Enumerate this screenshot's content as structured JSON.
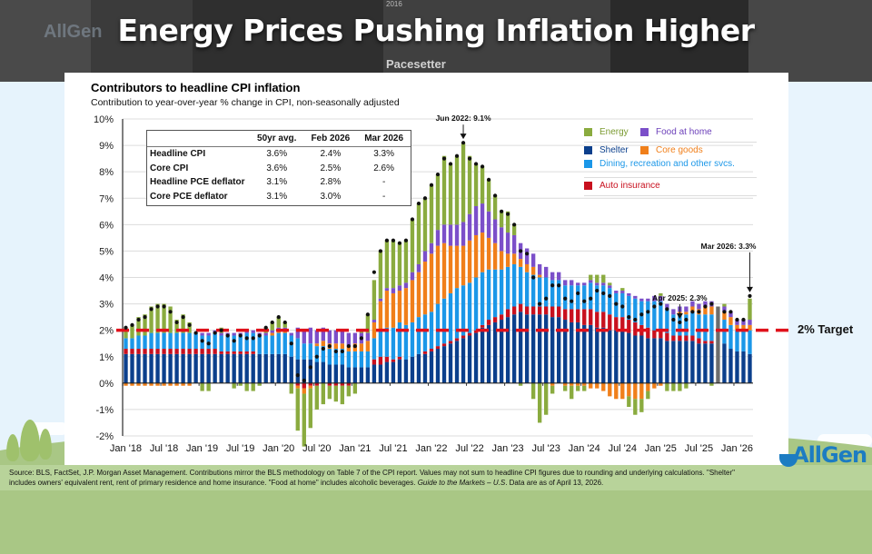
{
  "header": {
    "title": "Energy Prices Pushing Inflation Higher",
    "bg_logo_text": "AllGen",
    "bg_pacesetter_text": "Pacesetter",
    "bg_year_text": "2016"
  },
  "brand": {
    "name": "AllGen",
    "color": "#1c7cc2"
  },
  "source_note": {
    "line1": "Source: BLS, FactSet, J.P. Morgan Asset Management.  Contributions mirror the BLS methodology on Table 7 of the CPI report. Values may not sum to headline CPI figures due to rounding and underlying calculations. \"Shelter\"",
    "line2_a": "includes owners' equivalent rent, rent of primary residence and home insurance. \"Food at home\" includes alcoholic beverages. ",
    "line2_b": "Guide to the Markets – U.S",
    "line2_c": ". Data are as of April 13, 2026."
  },
  "summary_table": {
    "headers": [
      "",
      "50yr avg.",
      "Feb 2026",
      "Mar 2026"
    ],
    "rows": [
      {
        "label": "Headline CPI",
        "avg": "3.6%",
        "feb": "2.4%",
        "mar": "3.3%"
      },
      {
        "label": "Core CPI",
        "avg": "3.6%",
        "feb": "2.5%",
        "mar": "2.6%"
      },
      {
        "label": "Headline PCE deflator",
        "avg": "3.1%",
        "feb": "2.8%",
        "mar": "-"
      },
      {
        "label": "Core PCE deflator",
        "avg": "3.1%",
        "feb": "3.0%",
        "mar": "-"
      }
    ]
  },
  "target_label": "2% Target",
  "chart_data": {
    "type": "bar",
    "stacked": true,
    "title": "Contributors to headline CPI inflation",
    "subtitle": "Contribution to year-over-year % change in CPI, non-seasonally adjusted",
    "xlabel": "",
    "ylabel": "",
    "ylim": [
      -2,
      10
    ],
    "yticks": [
      "-2%",
      "-1%",
      "0%",
      "1%",
      "2%",
      "3%",
      "4%",
      "5%",
      "6%",
      "7%",
      "8%",
      "9%",
      "10%"
    ],
    "ytick_values": [
      -2,
      -1,
      0,
      1,
      2,
      3,
      4,
      5,
      6,
      7,
      8,
      9,
      10
    ],
    "xtick_labels": [
      "Jan '18",
      "Jul '18",
      "Jan '19",
      "Jul '19",
      "Jan '20",
      "Jul '20",
      "Jan '21",
      "Jul '21",
      "Jan '22",
      "Jul '22",
      "Jan '23",
      "Jul '23",
      "Jan '24",
      "Jul '24",
      "Jan '25",
      "Jul '25",
      "Jan '26"
    ],
    "xtick_index": [
      0,
      6,
      12,
      18,
      24,
      30,
      36,
      42,
      48,
      54,
      60,
      66,
      72,
      78,
      84,
      90,
      96
    ],
    "grid": true,
    "legend_position": "top-right",
    "legend": [
      {
        "name": "Energy",
        "color": "#8aab3f"
      },
      {
        "name": "Food at home",
        "color": "#7b4fc9"
      },
      {
        "name": "Shelter",
        "color": "#0b3f8c"
      },
      {
        "name": "Core goods",
        "color": "#f07f1a"
      },
      {
        "name": "Dining, recreation and other svcs.",
        "color": "#1b97e8"
      },
      {
        "name": "Auto insurance",
        "color": "#c8101e"
      }
    ],
    "target_line": {
      "value": 2,
      "label": "2% Target",
      "color": "#e0111b"
    },
    "annotations": [
      {
        "text": "Jun 2022: 9.1%",
        "index": 53,
        "value": 9.1
      },
      {
        "text": "Apr 2025: 2.3%",
        "index": 87,
        "value": 2.3
      },
      {
        "text": "Mar 2026: 3.3%",
        "index": 98,
        "value": 3.3
      }
    ],
    "missing_data_color": "#6d6d6d",
    "missing_data_index": [
      93
    ],
    "months": [
      "Jan 2018",
      "Feb 2018",
      "Mar 2018",
      "Apr 2018",
      "May 2018",
      "Jun 2018",
      "Jul 2018",
      "Aug 2018",
      "Sep 2018",
      "Oct 2018",
      "Nov 2018",
      "Dec 2018",
      "Jan 2019",
      "Feb 2019",
      "Mar 2019",
      "Apr 2019",
      "May 2019",
      "Jun 2019",
      "Jul 2019",
      "Aug 2019",
      "Sep 2019",
      "Oct 2019",
      "Nov 2019",
      "Dec 2019",
      "Jan 2020",
      "Feb 2020",
      "Mar 2020",
      "Apr 2020",
      "May 2020",
      "Jun 2020",
      "Jul 2020",
      "Aug 2020",
      "Sep 2020",
      "Oct 2020",
      "Nov 2020",
      "Dec 2020",
      "Jan 2021",
      "Feb 2021",
      "Mar 2021",
      "Apr 2021",
      "May 2021",
      "Jun 2021",
      "Jul 2021",
      "Aug 2021",
      "Sep 2021",
      "Oct 2021",
      "Nov 2021",
      "Dec 2021",
      "Jan 2022",
      "Feb 2022",
      "Mar 2022",
      "Apr 2022",
      "May 2022",
      "Jun 2022",
      "Jul 2022",
      "Aug 2022",
      "Sep 2022",
      "Oct 2022",
      "Nov 2022",
      "Dec 2022",
      "Jan 2023",
      "Feb 2023",
      "Mar 2023",
      "Apr 2023",
      "May 2023",
      "Jun 2023",
      "Jul 2023",
      "Aug 2023",
      "Sep 2023",
      "Oct 2023",
      "Nov 2023",
      "Dec 2023",
      "Jan 2024",
      "Feb 2024",
      "Mar 2024",
      "Apr 2024",
      "May 2024",
      "Jun 2024",
      "Jul 2024",
      "Aug 2024",
      "Sep 2024",
      "Oct 2024",
      "Nov 2024",
      "Dec 2024",
      "Jan 2025",
      "Feb 2025",
      "Mar 2025",
      "Apr 2025",
      "May 2025",
      "Jun 2025",
      "Jul 2025",
      "Aug 2025",
      "Sep 2025",
      "Oct 2025",
      "Nov 2025",
      "Dec 2025",
      "Jan 2026",
      "Feb 2026",
      "Mar 2026"
    ],
    "headline": [
      2.1,
      2.2,
      2.4,
      2.5,
      2.8,
      2.9,
      2.9,
      2.7,
      2.3,
      2.5,
      2.2,
      1.9,
      1.6,
      1.5,
      1.9,
      2.0,
      1.8,
      1.6,
      1.8,
      1.7,
      1.7,
      1.8,
      2.1,
      2.3,
      2.5,
      2.3,
      1.5,
      0.3,
      0.1,
      0.6,
      1.0,
      1.3,
      1.4,
      1.2,
      1.2,
      1.4,
      1.4,
      1.7,
      2.6,
      4.2,
      5.0,
      5.4,
      5.4,
      5.3,
      5.4,
      6.2,
      6.8,
      7.0,
      7.5,
      7.9,
      8.5,
      8.3,
      8.6,
      9.1,
      8.5,
      8.3,
      8.2,
      7.7,
      7.1,
      6.5,
      6.4,
      6.0,
      5.0,
      4.9,
      4.0,
      3.0,
      3.2,
      3.7,
      3.7,
      3.2,
      3.1,
      3.4,
      3.1,
      3.2,
      3.5,
      3.4,
      3.3,
      3.0,
      2.9,
      2.5,
      2.4,
      2.6,
      2.7,
      2.9,
      3.0,
      2.8,
      2.4,
      2.3,
      2.4,
      2.7,
      2.7,
      2.9,
      3.0,
      null,
      2.7,
      2.7,
      2.4,
      2.4,
      3.3
    ],
    "series": [
      {
        "name": "Shelter",
        "color": "#0b3f8c",
        "values": [
          1.1,
          1.1,
          1.1,
          1.1,
          1.1,
          1.1,
          1.1,
          1.1,
          1.1,
          1.1,
          1.1,
          1.1,
          1.1,
          1.1,
          1.1,
          1.1,
          1.1,
          1.1,
          1.1,
          1.1,
          1.1,
          1.1,
          1.1,
          1.1,
          1.1,
          1.1,
          1.0,
          0.9,
          0.9,
          0.9,
          0.8,
          0.8,
          0.7,
          0.7,
          0.7,
          0.6,
          0.6,
          0.6,
          0.6,
          0.7,
          0.7,
          0.8,
          0.8,
          0.9,
          0.9,
          1.0,
          1.1,
          1.1,
          1.2,
          1.3,
          1.4,
          1.5,
          1.6,
          1.7,
          1.8,
          1.9,
          2.1,
          2.2,
          2.3,
          2.4,
          2.5,
          2.6,
          2.7,
          2.6,
          2.6,
          2.6,
          2.6,
          2.5,
          2.5,
          2.4,
          2.3,
          2.3,
          2.2,
          2.2,
          2.1,
          2.1,
          2.0,
          2.0,
          2.0,
          1.9,
          1.8,
          1.8,
          1.7,
          1.7,
          1.7,
          1.6,
          1.6,
          1.6,
          1.6,
          1.6,
          1.5,
          1.5,
          1.5,
          1.5,
          1.5,
          1.3,
          1.2,
          1.2,
          1.1
        ]
      },
      {
        "name": "Auto insurance",
        "color": "#c8101e",
        "values": [
          0.2,
          0.2,
          0.2,
          0.2,
          0.2,
          0.2,
          0.2,
          0.2,
          0.2,
          0.2,
          0.2,
          0.2,
          0.2,
          0.2,
          0.2,
          0.1,
          0.1,
          0.1,
          0.1,
          0.1,
          0.1,
          0.0,
          0.0,
          0.0,
          0.0,
          0.0,
          0.0,
          -0.1,
          -0.2,
          -0.1,
          -0.1,
          0.0,
          -0.1,
          -0.1,
          -0.1,
          -0.1,
          0.0,
          0.0,
          0.0,
          0.2,
          0.3,
          0.2,
          0.1,
          0.1,
          0.0,
          0.0,
          0.0,
          0.1,
          0.1,
          0.1,
          0.1,
          0.1,
          0.1,
          0.1,
          0.1,
          0.1,
          0.1,
          0.2,
          0.2,
          0.2,
          0.3,
          0.3,
          0.3,
          0.3,
          0.3,
          0.3,
          0.3,
          0.4,
          0.4,
          0.4,
          0.5,
          0.5,
          0.6,
          0.6,
          0.6,
          0.6,
          0.6,
          0.5,
          0.5,
          0.5,
          0.5,
          0.4,
          0.4,
          0.3,
          0.3,
          0.3,
          0.2,
          0.2,
          0.2,
          0.2,
          0.2,
          0.1,
          0.1,
          0.0,
          0.0,
          0.0,
          0.0,
          0.0,
          0.0
        ]
      },
      {
        "name": "Dining, recreation and other svcs.",
        "color": "#1b97e8",
        "values": [
          0.4,
          0.4,
          0.5,
          0.5,
          0.6,
          0.6,
          0.6,
          0.6,
          0.6,
          0.6,
          0.6,
          0.6,
          0.5,
          0.5,
          0.6,
          0.6,
          0.6,
          0.6,
          0.6,
          0.7,
          0.7,
          0.7,
          0.7,
          0.7,
          0.8,
          0.8,
          0.8,
          0.8,
          0.6,
          0.6,
          0.6,
          0.6,
          0.6,
          0.6,
          0.6,
          0.6,
          0.6,
          0.6,
          0.6,
          0.8,
          1.0,
          1.1,
          1.2,
          1.3,
          1.3,
          1.3,
          1.4,
          1.4,
          1.4,
          1.6,
          1.7,
          1.8,
          1.9,
          1.9,
          1.9,
          2.0,
          2.0,
          1.9,
          1.8,
          1.7,
          1.6,
          1.6,
          1.4,
          1.3,
          1.2,
          1.1,
          1.1,
          1.0,
          1.0,
          0.9,
          0.9,
          0.9,
          0.9,
          1.0,
          1.0,
          1.0,
          1.0,
          0.9,
          0.9,
          0.9,
          0.9,
          0.9,
          1.0,
          1.1,
          1.1,
          0.9,
          0.8,
          0.8,
          0.8,
          0.9,
          0.9,
          1.0,
          1.0,
          0.0,
          0.9,
          0.9,
          0.8,
          0.8,
          0.9
        ]
      },
      {
        "name": "Core goods",
        "color": "#f07f1a",
        "values": [
          -0.1,
          -0.1,
          -0.1,
          -0.1,
          -0.1,
          -0.1,
          -0.1,
          -0.1,
          -0.1,
          -0.1,
          -0.1,
          0.0,
          0.0,
          0.0,
          0.0,
          0.0,
          0.0,
          0.0,
          0.0,
          0.0,
          0.0,
          0.0,
          0.0,
          0.1,
          0.1,
          0.1,
          0.0,
          -0.1,
          -0.2,
          -0.1,
          0.1,
          0.2,
          0.2,
          0.2,
          0.2,
          0.2,
          0.3,
          0.3,
          0.4,
          0.6,
          1.1,
          1.4,
          1.3,
          1.2,
          1.4,
          1.6,
          1.7,
          2.0,
          2.2,
          2.2,
          2.1,
          1.8,
          1.6,
          1.5,
          1.6,
          1.6,
          1.5,
          1.2,
          1.0,
          0.7,
          0.5,
          0.4,
          0.3,
          0.3,
          0.3,
          0.1,
          0.0,
          -0.1,
          0.0,
          -0.1,
          -0.1,
          -0.1,
          -0.1,
          -0.2,
          -0.2,
          -0.3,
          -0.5,
          -0.6,
          -0.6,
          -0.5,
          -0.6,
          -0.6,
          -0.3,
          -0.2,
          -0.1,
          0.0,
          0.0,
          0.1,
          0.1,
          0.2,
          0.2,
          0.3,
          0.3,
          0.0,
          0.3,
          0.3,
          0.2,
          0.2,
          0.2
        ]
      },
      {
        "name": "Food at home",
        "color": "#7b4fc9",
        "values": [
          0.0,
          0.0,
          0.0,
          0.0,
          0.0,
          0.0,
          0.0,
          0.0,
          0.0,
          0.0,
          0.0,
          0.0,
          0.1,
          0.1,
          0.1,
          0.1,
          0.1,
          0.1,
          0.1,
          0.1,
          0.1,
          0.1,
          0.1,
          0.1,
          0.1,
          0.1,
          0.1,
          0.4,
          0.5,
          0.6,
          0.5,
          0.5,
          0.5,
          0.5,
          0.5,
          0.5,
          0.4,
          0.4,
          0.3,
          0.1,
          0.1,
          0.1,
          0.2,
          0.2,
          0.2,
          0.3,
          0.3,
          0.4,
          0.4,
          0.6,
          0.7,
          0.8,
          0.8,
          0.9,
          1.0,
          1.1,
          1.1,
          1.0,
          0.9,
          0.9,
          0.8,
          0.7,
          0.6,
          0.6,
          0.5,
          0.4,
          0.4,
          0.3,
          0.3,
          0.2,
          0.2,
          0.1,
          0.1,
          0.1,
          0.1,
          0.1,
          0.1,
          0.1,
          0.1,
          0.1,
          0.1,
          0.1,
          0.1,
          0.2,
          0.2,
          0.2,
          0.2,
          0.2,
          0.2,
          0.2,
          0.2,
          0.2,
          0.2,
          0.0,
          0.2,
          0.2,
          0.2,
          0.2,
          0.2
        ]
      },
      {
        "name": "Energy",
        "color": "#8aab3f",
        "values": [
          0.4,
          0.5,
          0.7,
          0.8,
          1.0,
          1.1,
          1.1,
          1.0,
          0.5,
          0.7,
          0.4,
          0.0,
          -0.3,
          -0.3,
          0.0,
          0.2,
          0.0,
          -0.2,
          -0.1,
          -0.3,
          -0.3,
          -0.1,
          0.2,
          0.3,
          0.4,
          0.2,
          -0.4,
          -1.6,
          -2.0,
          -1.5,
          -0.9,
          -0.8,
          -0.5,
          -0.6,
          -0.7,
          -0.4,
          -0.4,
          0.1,
          0.7,
          1.5,
          1.8,
          1.8,
          1.8,
          1.6,
          1.6,
          2.0,
          2.3,
          2.0,
          2.2,
          2.1,
          2.6,
          2.3,
          2.6,
          3.0,
          2.2,
          1.6,
          1.4,
          1.2,
          0.9,
          0.6,
          0.8,
          0.4,
          -0.1,
          0.0,
          -0.6,
          -1.5,
          -1.2,
          -0.3,
          0.0,
          -0.2,
          -0.5,
          -0.2,
          -0.2,
          0.2,
          0.3,
          0.3,
          0.1,
          0.0,
          0.1,
          -0.4,
          -0.6,
          -0.5,
          -0.3,
          0.0,
          0.1,
          -0.3,
          -0.3,
          -0.3,
          -0.2,
          0.0,
          0.0,
          0.0,
          -0.1,
          0.0,
          0.1,
          0.0,
          0.0,
          0.0,
          0.8
        ]
      }
    ]
  }
}
